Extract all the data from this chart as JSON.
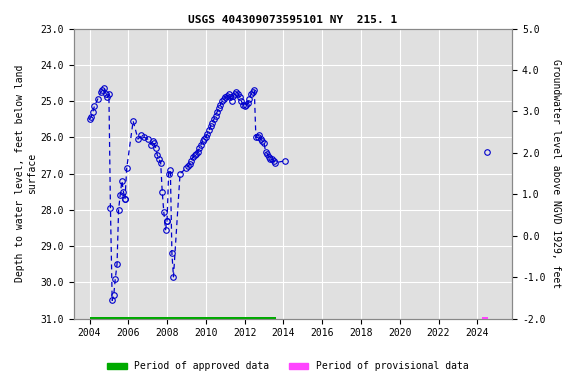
{
  "title": "USGS 404309073595101 NY  215. 1",
  "ylabel_left": "Depth to water level, feet below land\nsurface",
  "ylabel_right": "Groundwater level above NGVD 1929, feet",
  "ylim_left": [
    23.0,
    31.0
  ],
  "ylim_right": [
    5.0,
    -2.0
  ],
  "yticks_left": [
    23.0,
    24.0,
    25.0,
    26.0,
    27.0,
    28.0,
    29.0,
    30.0,
    31.0
  ],
  "yticks_right": [
    5.0,
    4.0,
    3.0,
    2.0,
    1.0,
    0.0,
    -1.0,
    -2.0
  ],
  "xlim": [
    2003.2,
    2025.8
  ],
  "xticks": [
    2004,
    2006,
    2008,
    2010,
    2012,
    2014,
    2016,
    2018,
    2020,
    2022,
    2024
  ],
  "background_color": "#ffffff",
  "plot_bg_color": "#e0e0e0",
  "grid_color": "#ffffff",
  "data_color": "#0000cc",
  "approved_bar_color": "#00aa00",
  "provisional_bar_color": "#ff44ff",
  "approved_bar_start": 2004.0,
  "approved_bar_end": 2013.6,
  "provisional_bar_start": 2024.25,
  "provisional_bar_end": 2024.55,
  "bar_y_center": 31.05,
  "bar_height": 0.18,
  "segments": [
    [
      [
        2004.0,
        25.5
      ],
      [
        2004.08,
        25.45
      ],
      [
        2004.17,
        25.3
      ],
      [
        2004.25,
        25.15
      ],
      [
        2004.42,
        24.95
      ],
      [
        2004.58,
        24.75
      ],
      [
        2004.67,
        24.7
      ],
      [
        2004.75,
        24.65
      ],
      [
        2004.83,
        24.8
      ],
      [
        2004.92,
        24.9
      ],
      [
        2005.0,
        24.8
      ],
      [
        2005.08,
        27.95
      ],
      [
        2005.17,
        30.5
      ],
      [
        2005.25,
        30.35
      ],
      [
        2005.33,
        29.9
      ],
      [
        2005.42,
        29.5
      ],
      [
        2005.5,
        28.0
      ],
      [
        2005.58,
        27.6
      ],
      [
        2005.67,
        27.2
      ],
      [
        2005.75,
        27.5
      ],
      [
        2005.83,
        27.7
      ]
    ],
    [
      [
        2005.83,
        27.7
      ],
      [
        2005.92,
        26.85
      ],
      [
        2006.25,
        25.55
      ],
      [
        2006.5,
        26.05
      ],
      [
        2006.67,
        25.95
      ],
      [
        2006.83,
        26.0
      ],
      [
        2007.0,
        26.05
      ],
      [
        2007.17,
        26.2
      ],
      [
        2007.25,
        26.1
      ],
      [
        2007.33,
        26.15
      ],
      [
        2007.42,
        26.3
      ],
      [
        2007.5,
        26.5
      ],
      [
        2007.58,
        26.6
      ],
      [
        2007.67,
        26.7
      ],
      [
        2007.75,
        27.5
      ],
      [
        2007.83,
        28.05
      ],
      [
        2007.92,
        28.55
      ],
      [
        2008.0,
        28.3
      ]
    ],
    [
      [
        2008.0,
        28.3
      ],
      [
        2008.08,
        27.0
      ],
      [
        2008.17,
        26.9
      ],
      [
        2008.25,
        29.2
      ],
      [
        2008.33,
        29.85
      ],
      [
        2008.67,
        27.0
      ],
      [
        2009.0,
        26.85
      ],
      [
        2009.08,
        26.8
      ],
      [
        2009.17,
        26.75
      ],
      [
        2009.25,
        26.65
      ],
      [
        2009.33,
        26.55
      ],
      [
        2009.42,
        26.5
      ],
      [
        2009.5,
        26.45
      ],
      [
        2009.58,
        26.4
      ],
      [
        2009.67,
        26.3
      ],
      [
        2009.75,
        26.2
      ],
      [
        2009.83,
        26.1
      ],
      [
        2009.92,
        26.05
      ],
      [
        2010.0,
        26.0
      ],
      [
        2010.08,
        25.9
      ],
      [
        2010.17,
        25.8
      ],
      [
        2010.25,
        25.7
      ],
      [
        2010.33,
        25.6
      ],
      [
        2010.42,
        25.5
      ],
      [
        2010.5,
        25.4
      ],
      [
        2010.58,
        25.3
      ],
      [
        2010.67,
        25.2
      ],
      [
        2010.75,
        25.1
      ],
      [
        2010.83,
        25.0
      ],
      [
        2010.92,
        24.95
      ],
      [
        2011.0,
        24.9
      ],
      [
        2011.08,
        24.85
      ],
      [
        2011.17,
        24.8
      ],
      [
        2011.25,
        24.9
      ],
      [
        2011.33,
        25.0
      ],
      [
        2011.42,
        24.85
      ],
      [
        2011.5,
        24.8
      ],
      [
        2011.58,
        24.75
      ],
      [
        2011.67,
        24.8
      ],
      [
        2011.75,
        24.9
      ],
      [
        2011.83,
        25.0
      ],
      [
        2011.92,
        25.1
      ],
      [
        2012.0,
        25.15
      ],
      [
        2012.08,
        25.1
      ],
      [
        2012.17,
        25.05
      ],
      [
        2012.25,
        24.95
      ],
      [
        2012.33,
        24.8
      ],
      [
        2012.42,
        24.75
      ],
      [
        2012.5,
        24.7
      ],
      [
        2012.58,
        26.0
      ],
      [
        2012.67,
        26.0
      ],
      [
        2012.75,
        25.95
      ],
      [
        2012.83,
        26.05
      ],
      [
        2012.92,
        26.1
      ],
      [
        2013.0,
        26.15
      ],
      [
        2013.08,
        26.4
      ],
      [
        2013.17,
        26.45
      ],
      [
        2013.25,
        26.55
      ],
      [
        2013.33,
        26.6
      ],
      [
        2013.42,
        26.6
      ],
      [
        2013.5,
        26.65
      ],
      [
        2013.58,
        26.7
      ],
      [
        2014.08,
        26.65
      ]
    ],
    [
      [
        2024.5,
        26.4
      ]
    ]
  ]
}
